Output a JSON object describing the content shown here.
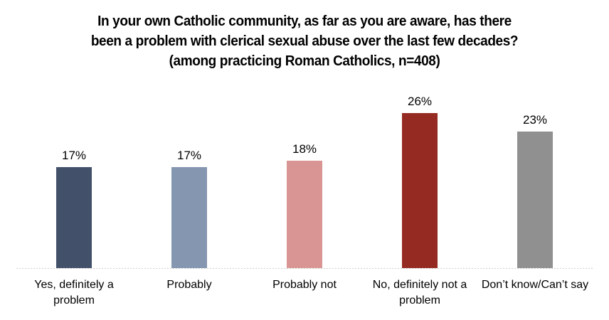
{
  "title": {
    "line1": "In your own Catholic community, as far as you are aware, has there",
    "line2": "been a problem with clerical sexual abuse over the last few decades?",
    "line3": "(among practicing Roman Catholics, n=408)"
  },
  "chart_data": {
    "type": "bar",
    "title": "In your own Catholic community, as far as you are aware, has there been a problem with clerical sexual abuse over the last few decades? (among practicing Roman Catholics, n=408)",
    "categories": [
      "Yes, definitely a problem",
      "Probably",
      "Probably not",
      "No, definitely not a problem",
      "Don’t know/Can’t say"
    ],
    "values": [
      17,
      17,
      18,
      26,
      23
    ],
    "labels": [
      "17%",
      "17%",
      "18%",
      "26%",
      "23%"
    ],
    "colors": [
      "#42506a",
      "#8496b0",
      "#d99594",
      "#952a22",
      "#8f8f8f"
    ],
    "bar_textures": [
      "solid",
      "solid",
      "solid",
      "solid",
      "checker"
    ],
    "xlabel": "",
    "ylabel": "",
    "ylim": [
      0,
      30
    ],
    "grid": false,
    "legend": "none",
    "data_label_format": "percent",
    "background": "#ffffff"
  }
}
